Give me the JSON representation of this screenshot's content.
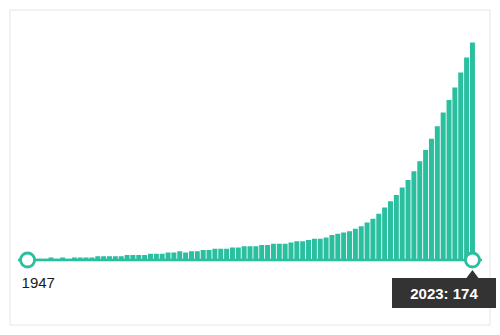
{
  "chart_data": {
    "type": "bar",
    "x": [
      1947,
      1948,
      1949,
      1950,
      1951,
      1952,
      1953,
      1954,
      1955,
      1956,
      1957,
      1958,
      1959,
      1960,
      1961,
      1962,
      1963,
      1964,
      1965,
      1966,
      1967,
      1968,
      1969,
      1970,
      1971,
      1972,
      1973,
      1974,
      1975,
      1976,
      1977,
      1978,
      1979,
      1980,
      1981,
      1982,
      1983,
      1984,
      1985,
      1986,
      1987,
      1988,
      1989,
      1990,
      1991,
      1992,
      1993,
      1994,
      1995,
      1996,
      1997,
      1998,
      1999,
      2000,
      2001,
      2002,
      2003,
      2004,
      2005,
      2006,
      2007,
      2008,
      2009,
      2010,
      2011,
      2012,
      2013,
      2014,
      2015,
      2016,
      2017,
      2018,
      2019,
      2020,
      2021,
      2022,
      2023
    ],
    "values": [
      1,
      1,
      1,
      1,
      2,
      1,
      2,
      1,
      2,
      2,
      2,
      2,
      3,
      3,
      3,
      3,
      3,
      4,
      4,
      4,
      4,
      5,
      5,
      5,
      6,
      6,
      7,
      6,
      7,
      7,
      8,
      8,
      9,
      9,
      9,
      10,
      10,
      11,
      11,
      11,
      12,
      12,
      13,
      13,
      13,
      14,
      15,
      15,
      16,
      17,
      17,
      18,
      20,
      21,
      22,
      23,
      25,
      27,
      30,
      33,
      37,
      42,
      47,
      52,
      58,
      64,
      71,
      79,
      88,
      97,
      107,
      118,
      128,
      138,
      150,
      162,
      174
    ],
    "color": "#2abf9e",
    "xlim": [
      1944,
      2026
    ],
    "ylim": [
      -52,
      200
    ],
    "tick_labels": false,
    "annotations": [
      {
        "text": "1947",
        "x": 1947
      },
      {
        "text": "2023: 174",
        "x": 2023
      }
    ]
  }
}
